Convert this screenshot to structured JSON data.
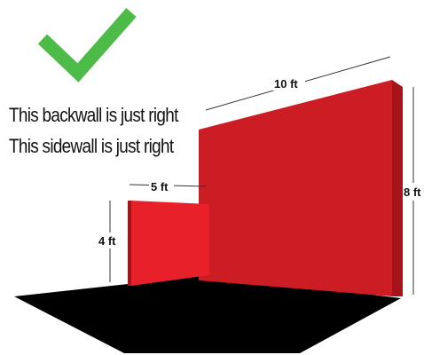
{
  "captions": {
    "backwall": "This backwall is just right",
    "sidewall": "This sidewall is just right"
  },
  "dimensions": {
    "backwall_width": "10 ft",
    "backwall_height": "8 ft",
    "sidewall_width": "5 ft",
    "sidewall_height": "4 ft"
  },
  "icons": {
    "approval": "checkmark-icon"
  },
  "colors": {
    "checkmark": "#4cbb47",
    "wall_front": "#cc1c24",
    "wall_side": "#a51419",
    "sidewall_front": "#e8202a",
    "floor": "#000000"
  }
}
